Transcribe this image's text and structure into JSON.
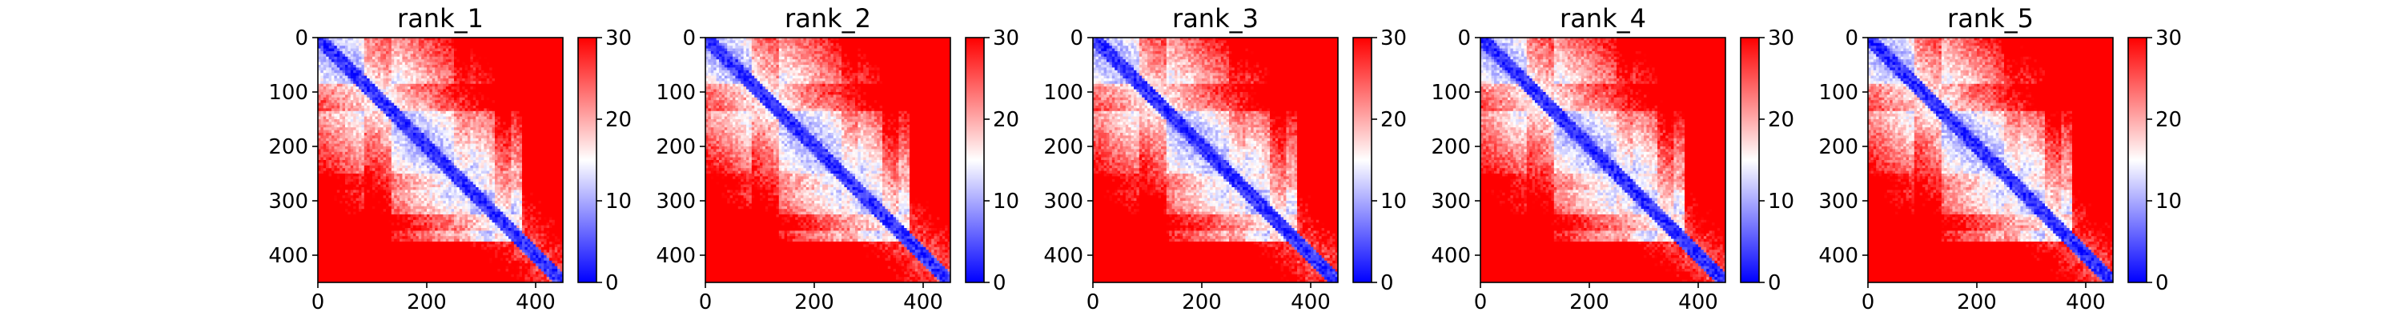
{
  "chart_data": [
    {
      "type": "heatmap",
      "title": "rank_1",
      "xticks": [
        "0",
        "200",
        "400"
      ],
      "yticks": [
        "0",
        "100",
        "200",
        "300",
        "400"
      ],
      "xlim": [
        0,
        450
      ],
      "ylim": [
        450,
        0
      ],
      "colorbar": {
        "min": 0,
        "max": 30,
        "ticks": [
          "0",
          "10",
          "20",
          "30"
        ],
        "colormap": "bwr"
      },
      "grid": false
    },
    {
      "type": "heatmap",
      "title": "rank_2",
      "xticks": [
        "0",
        "200",
        "400"
      ],
      "yticks": [
        "0",
        "100",
        "200",
        "300",
        "400"
      ],
      "xlim": [
        0,
        450
      ],
      "ylim": [
        450,
        0
      ],
      "colorbar": {
        "min": 0,
        "max": 30,
        "ticks": [
          "0",
          "10",
          "20",
          "30"
        ],
        "colormap": "bwr"
      },
      "grid": false
    },
    {
      "type": "heatmap",
      "title": "rank_3",
      "xticks": [
        "0",
        "200",
        "400"
      ],
      "yticks": [
        "0",
        "100",
        "200",
        "300",
        "400"
      ],
      "xlim": [
        0,
        450
      ],
      "ylim": [
        450,
        0
      ],
      "colorbar": {
        "min": 0,
        "max": 30,
        "ticks": [
          "0",
          "10",
          "20",
          "30"
        ],
        "colormap": "bwr"
      },
      "grid": false
    },
    {
      "type": "heatmap",
      "title": "rank_4",
      "xticks": [
        "0",
        "200",
        "400"
      ],
      "yticks": [
        "0",
        "100",
        "200",
        "300",
        "400"
      ],
      "xlim": [
        0,
        450
      ],
      "ylim": [
        450,
        0
      ],
      "colorbar": {
        "min": 0,
        "max": 30,
        "ticks": [
          "0",
          "10",
          "20",
          "30"
        ],
        "colormap": "bwr"
      },
      "grid": false
    },
    {
      "type": "heatmap",
      "title": "rank_5",
      "xticks": [
        "0",
        "200",
        "400"
      ],
      "yticks": [
        "0",
        "100",
        "200",
        "300",
        "400"
      ],
      "xlim": [
        0,
        450
      ],
      "ylim": [
        450,
        0
      ],
      "colorbar": {
        "min": 0,
        "max": 30,
        "ticks": [
          "0",
          "10",
          "20",
          "30"
        ],
        "colormap": "bwr"
      },
      "grid": false
    }
  ],
  "colors": {
    "low": "#0000ff",
    "mid": "#ffffff",
    "high": "#ff0000"
  }
}
